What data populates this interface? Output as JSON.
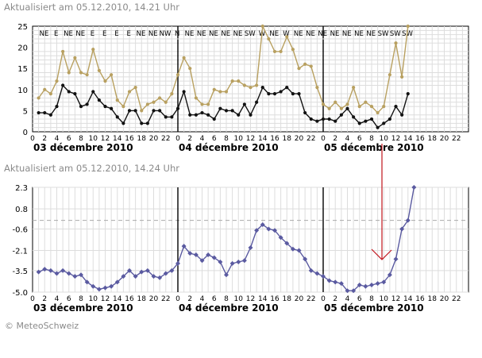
{
  "headers": {
    "wind_updated": "Aktualisiert am 05.12.2010, 14.21 Uhr",
    "pressure_updated": "Aktualisiert am 05.12.2010, 14.24 Uhr"
  },
  "copyright": "© MeteoSchweiz",
  "colors": {
    "gust": "#b8a060",
    "mean": "#111111",
    "pressure": "#5a5aa0",
    "annotation": "#c0141c",
    "grid": "#dddddd"
  },
  "chart_data": [
    {
      "type": "line",
      "x_hour_ticks": [
        "0",
        "2",
        "4",
        "6",
        "8",
        "10",
        "12",
        "14",
        "16",
        "18",
        "20",
        "22",
        "0",
        "2",
        "4",
        "6",
        "8",
        "10",
        "12",
        "14",
        "16",
        "18",
        "20",
        "22",
        "0",
        "2",
        "4",
        "6",
        "8",
        "10",
        "12",
        "14",
        "16",
        "18",
        "20",
        "22"
      ],
      "day_labels": [
        "03 décembre 2010",
        "04 décembre 2010",
        "05 décembre 2010"
      ],
      "ylim": [
        0,
        25
      ],
      "y_ticks": [
        "0",
        "5",
        "10",
        "15",
        "20",
        "25"
      ],
      "grid": true,
      "wind_directions": [
        "NE",
        "E",
        "NE",
        "NE",
        "E",
        "E",
        "E",
        "E",
        "NE",
        "NE",
        "NW",
        "N",
        "NE",
        "NE",
        "NE",
        "NE",
        "NE",
        "SW",
        "W",
        "NE",
        "W",
        "NE",
        "NE",
        "NE",
        "NE",
        "NE",
        "NE",
        "NE",
        "SW",
        "SW",
        "SW"
      ],
      "series": [
        {
          "values": [
            8,
            10,
            9,
            12,
            19,
            14,
            17.5,
            14,
            13.5,
            19.5,
            14.5,
            12,
            13.5,
            7.5,
            6,
            9.5,
            10.5,
            5,
            6.5,
            7,
            8,
            7,
            9,
            13.5,
            17.5,
            15,
            8,
            6.5,
            6.5,
            10,
            9.5,
            9.5,
            12,
            12,
            11,
            10.5,
            11,
            25,
            22,
            19,
            19,
            22.5,
            19.5,
            15,
            16,
            15.5,
            10.5,
            6.5,
            5.5,
            7,
            5.5,
            6.5,
            10.5,
            6,
            7,
            6,
            4.5,
            6,
            13.5,
            21,
            13,
            25
          ]
        },
        {
          "values": [
            4.5,
            4.5,
            4,
            6,
            11,
            9.5,
            9,
            6,
            6.5,
            9.5,
            7.5,
            6,
            5.5,
            3.5,
            2,
            5,
            5,
            2,
            2,
            5,
            5,
            3.5,
            3.5,
            5.5,
            9.5,
            4,
            4,
            4.5,
            4,
            3,
            5.5,
            5,
            5,
            4,
            6.5,
            4,
            7,
            10.5,
            9,
            9,
            9.5,
            10.5,
            9,
            9,
            4.5,
            3,
            2.5,
            3,
            3,
            2.5,
            4,
            5.5,
            3.5,
            2,
            2.5,
            3,
            1,
            2,
            3,
            6,
            4,
            9
          ]
        }
      ]
    },
    {
      "type": "line",
      "x_hour_ticks": [
        "0",
        "2",
        "4",
        "6",
        "8",
        "10",
        "12",
        "14",
        "16",
        "18",
        "20",
        "22",
        "0",
        "2",
        "4",
        "6",
        "8",
        "10",
        "12",
        "14",
        "16",
        "18",
        "20",
        "22",
        "0",
        "2",
        "4",
        "6",
        "8",
        "10",
        "12",
        "14",
        "16",
        "18",
        "20",
        "22"
      ],
      "day_labels": [
        "03 décembre 2010",
        "04 décembre 2010",
        "05 décembre 2010"
      ],
      "ylim": [
        -5.0,
        2.3
      ],
      "y_ticks": [
        "-5.0",
        "-3.5",
        "-2.1",
        "-0.6",
        "0.8",
        "2.3"
      ],
      "grid": true,
      "series": [
        {
          "values": [
            -3.6,
            -3.4,
            -3.5,
            -3.7,
            -3.5,
            -3.7,
            -3.9,
            -3.8,
            -4.3,
            -4.6,
            -4.8,
            -4.7,
            -4.6,
            -4.3,
            -3.9,
            -3.5,
            -3.9,
            -3.6,
            -3.5,
            -3.9,
            -4.0,
            -3.7,
            -3.5,
            -3.0,
            -1.8,
            -2.3,
            -2.4,
            -2.8,
            -2.4,
            -2.6,
            -2.9,
            -3.8,
            -3.0,
            -2.9,
            -2.8,
            -1.9,
            -0.7,
            -0.3,
            -0.6,
            -0.7,
            -1.2,
            -1.6,
            -2.0,
            -2.1,
            -2.7,
            -3.5,
            -3.7,
            -3.9,
            -4.2,
            -4.3,
            -4.4,
            -4.9,
            -4.9,
            -4.5,
            -4.6,
            -4.5,
            -4.4,
            -4.3,
            -3.8,
            -2.7,
            -0.6,
            0.0,
            2.3
          ]
        }
      ]
    }
  ]
}
